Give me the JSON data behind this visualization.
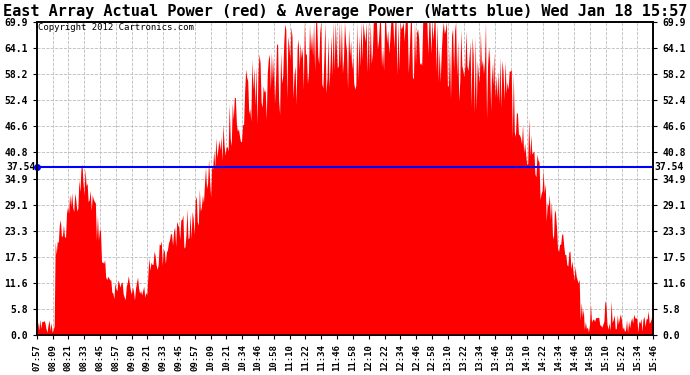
{
  "title": "East Array Actual Power (red) & Average Power (Watts blue) Wed Jan 18 15:57",
  "copyright": "Copyright 2012 Cartronics.com",
  "avg_value": 37.54,
  "avg_label": "37.54",
  "y_ticks": [
    0.0,
    5.8,
    11.6,
    17.5,
    23.3,
    29.1,
    34.9,
    40.8,
    46.6,
    52.4,
    58.2,
    64.1,
    69.9
  ],
  "ymin": 0.0,
  "ymax": 69.9,
  "fill_color": "#ff0000",
  "avg_line_color": "#0000ff",
  "bg_color": "#ffffff",
  "grid_color": "#bbbbbb",
  "title_fontsize": 11,
  "copyright_fontsize": 6.5,
  "x_labels": [
    "07:57",
    "08:09",
    "08:21",
    "08:33",
    "08:45",
    "08:57",
    "09:09",
    "09:21",
    "09:33",
    "09:45",
    "09:57",
    "10:09",
    "10:21",
    "10:34",
    "10:46",
    "10:58",
    "11:10",
    "11:22",
    "11:34",
    "11:46",
    "11:58",
    "12:10",
    "12:22",
    "12:34",
    "12:46",
    "12:58",
    "13:10",
    "13:22",
    "13:34",
    "13:46",
    "13:58",
    "14:10",
    "14:22",
    "14:34",
    "14:46",
    "14:58",
    "15:10",
    "15:22",
    "15:34",
    "15:46"
  ]
}
